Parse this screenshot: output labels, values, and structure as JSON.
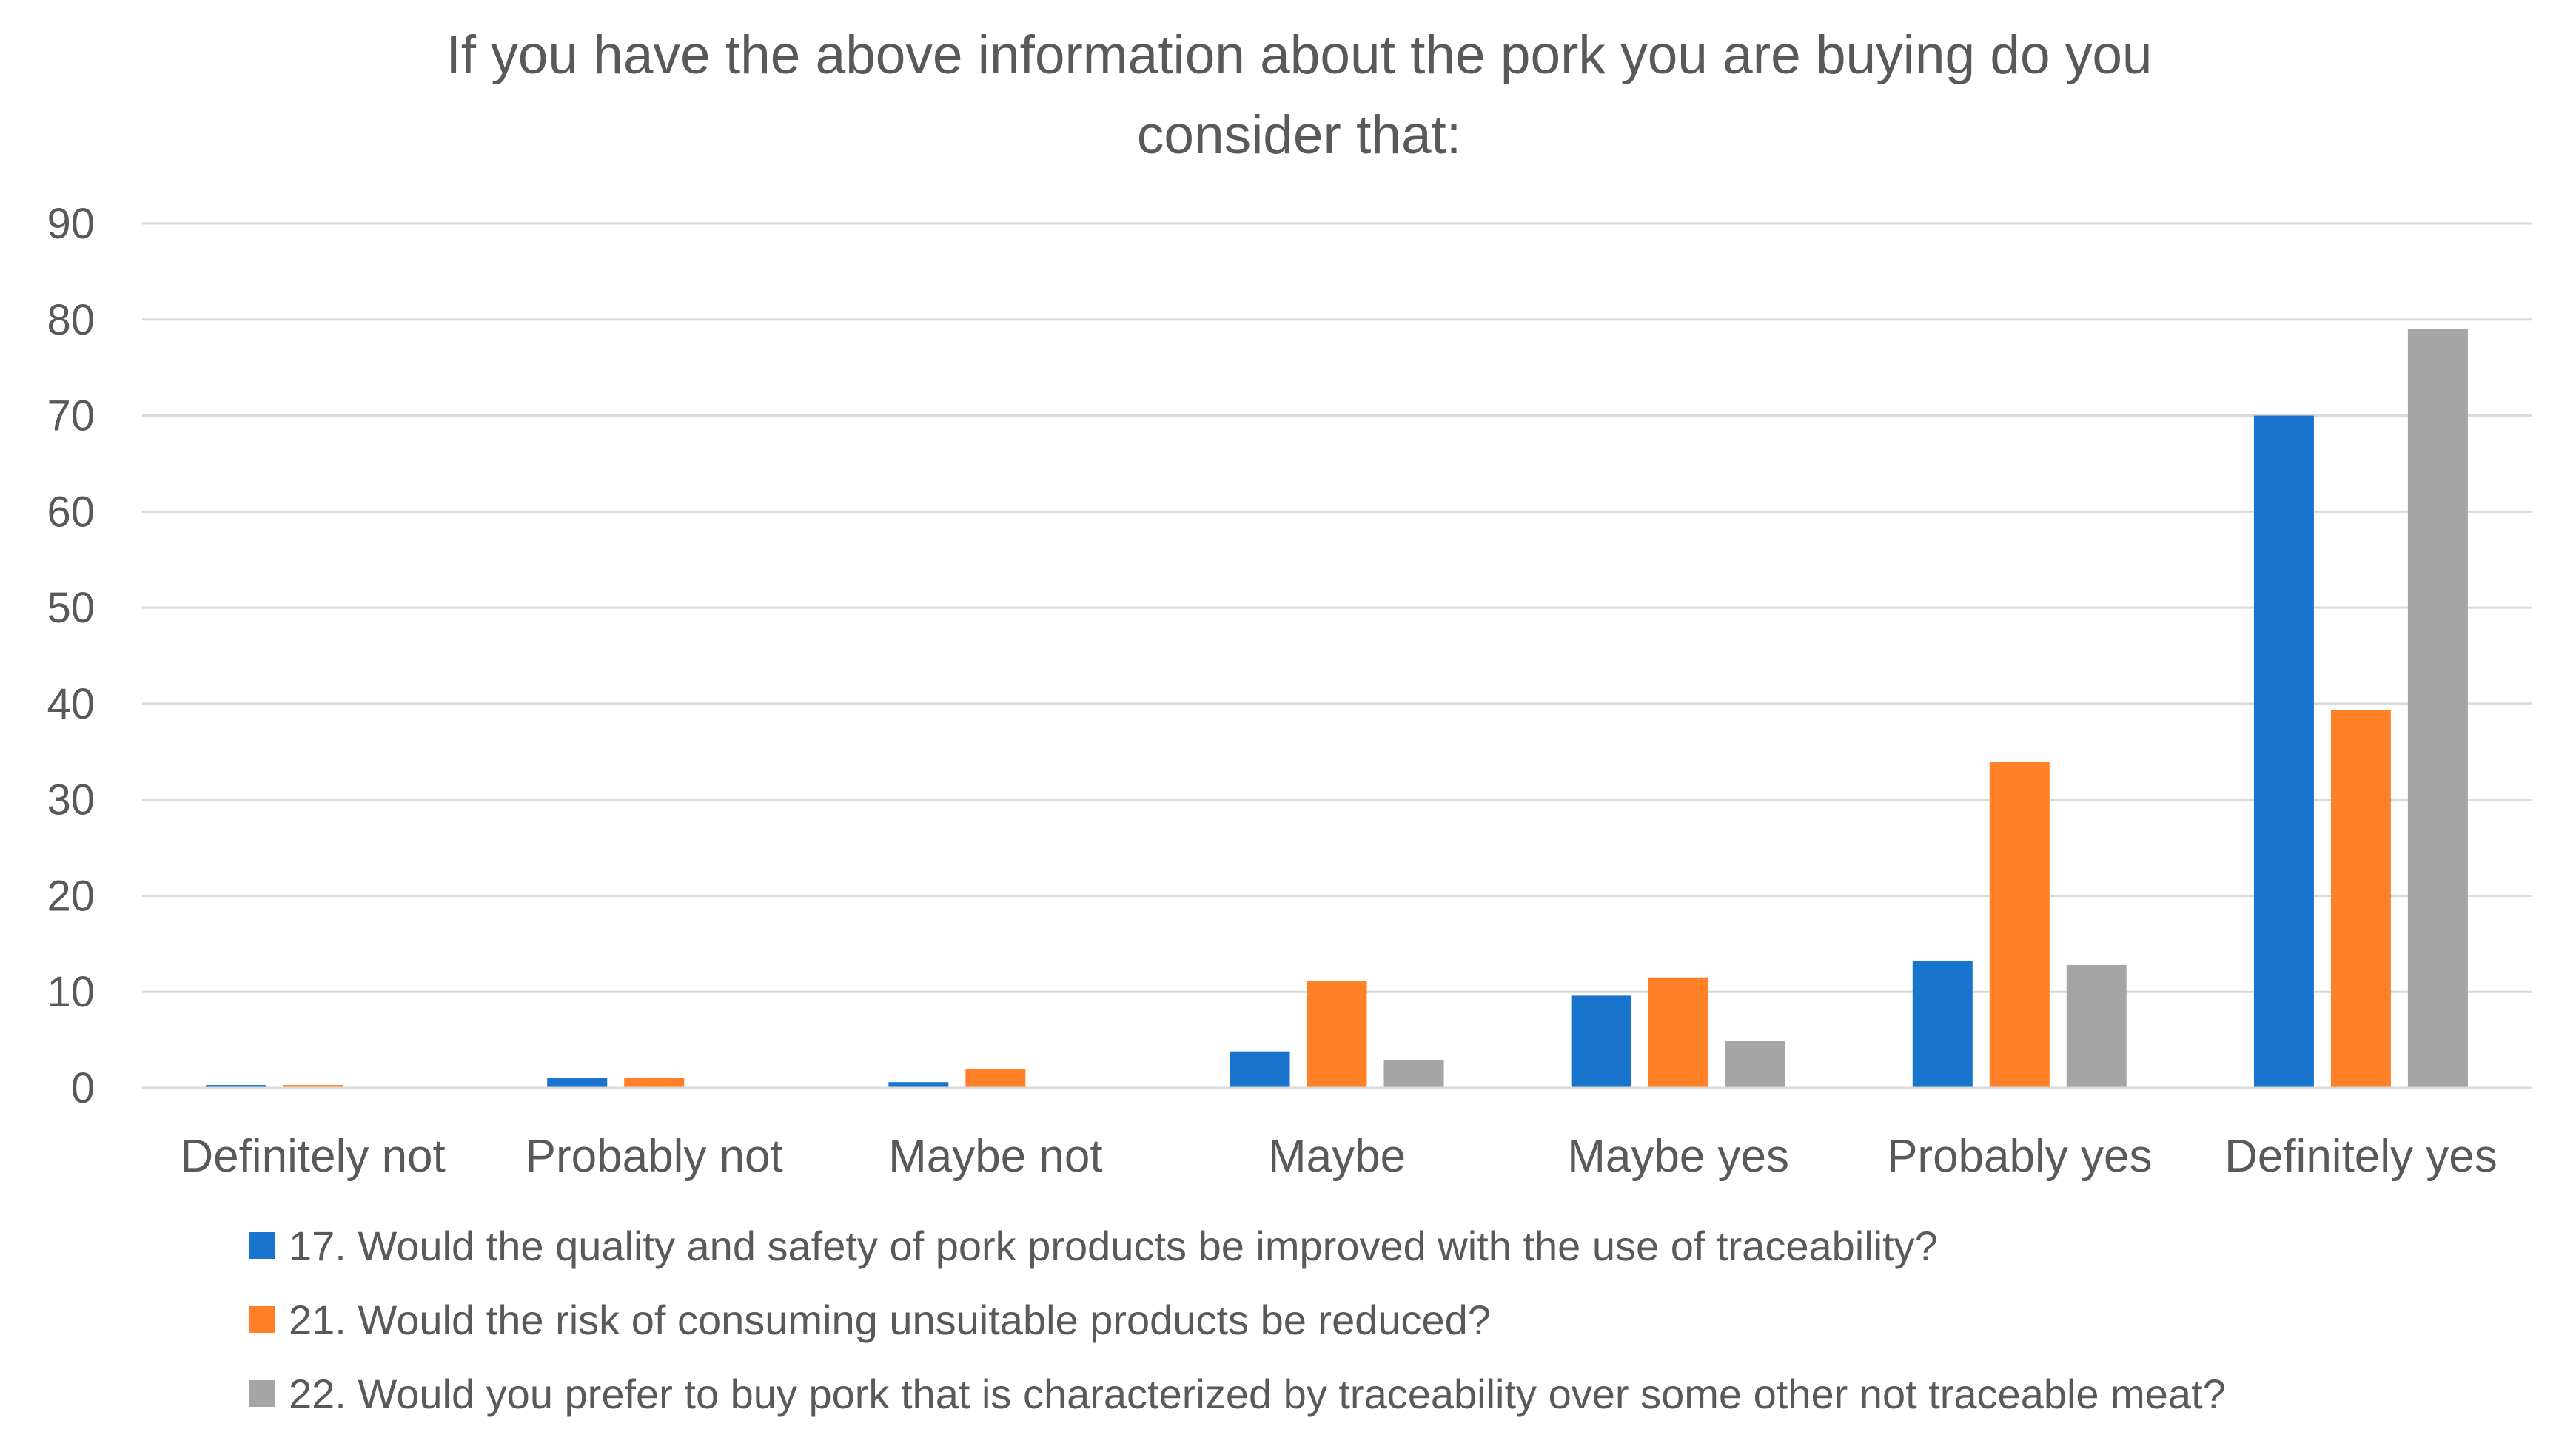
{
  "chart_data": {
    "type": "bar",
    "title": "If you have the above information about the pork you are buying  do you consider that:",
    "title_lines": [
      "If you have the above information about the pork you are buying  do you",
      "consider that:"
    ],
    "categories": [
      "Definitely not",
      "Probably not",
      "Maybe not",
      "Maybe",
      "Maybe yes",
      "Probably yes",
      "Definitely yes"
    ],
    "ylim": [
      0,
      90
    ],
    "yticks": [
      0,
      10,
      20,
      30,
      40,
      50,
      60,
      70,
      80,
      90
    ],
    "grid": true,
    "legend_position": "bottom",
    "series": [
      {
        "name": "17. Would the quality and safety of pork products be improved with the use of traceability?",
        "color": "#1874CD",
        "values": [
          0.3,
          1.0,
          0.6,
          3.8,
          9.6,
          13.2,
          70
        ]
      },
      {
        "name": "21. Would the risk of consuming unsuitable products be reduced?",
        "color": "#FF8027",
        "values": [
          0.3,
          1.0,
          2.0,
          11.1,
          11.5,
          33.9,
          39.3
        ]
      },
      {
        "name": "22. Would you prefer to buy pork that is characterized by traceability over some other not traceable meat?",
        "color": "#A5A5A5",
        "values": [
          0,
          0,
          0,
          2.9,
          4.9,
          12.8,
          79
        ]
      }
    ]
  }
}
